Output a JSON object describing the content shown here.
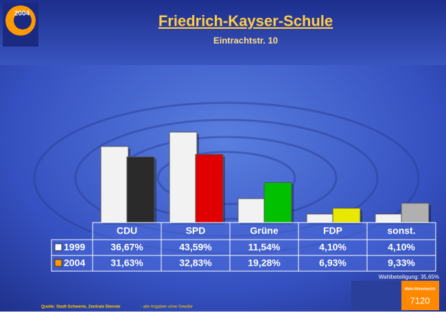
{
  "chart_data": {
    "type": "bar",
    "title": "Friedrich-Kayser-Schule",
    "subtitle": "Eintrachtstr. 10",
    "logo_text": "2004",
    "categories": [
      "CDU",
      "SPD",
      "Grüne",
      "FDP",
      "sonst."
    ],
    "series": [
      {
        "name": "1999",
        "color": "#ffffff",
        "point_colors": [
          "#f2f2f2",
          "#f2f2f2",
          "#f2f2f2",
          "#f2f2f2",
          "#f2f2f2"
        ],
        "values": [
          36.67,
          43.59,
          11.54,
          4.1,
          4.1
        ],
        "value_labels": [
          "36,67%",
          "43,59%",
          "11,54%",
          "4,10%",
          "4,10%"
        ]
      },
      {
        "name": "2004",
        "color": "#ff9900",
        "point_colors": [
          "#2a2a2a",
          "#e00000",
          "#00c000",
          "#e8e800",
          "#b0b0b0"
        ],
        "values": [
          31.63,
          32.83,
          19.28,
          6.93,
          9.33
        ],
        "value_labels": [
          "31,63%",
          "32,83%",
          "19,28%",
          "6,93%",
          "9,33%"
        ]
      }
    ],
    "turnout": "Wahlbeteiligung: 35,65%",
    "district_label": "Wahl-/Stimmbezirk",
    "district": "7120",
    "source": "Quelle: Stadt Schwerte, Zentrale Dienste",
    "source_note": "- alle Angaben ohne Gewähr"
  }
}
